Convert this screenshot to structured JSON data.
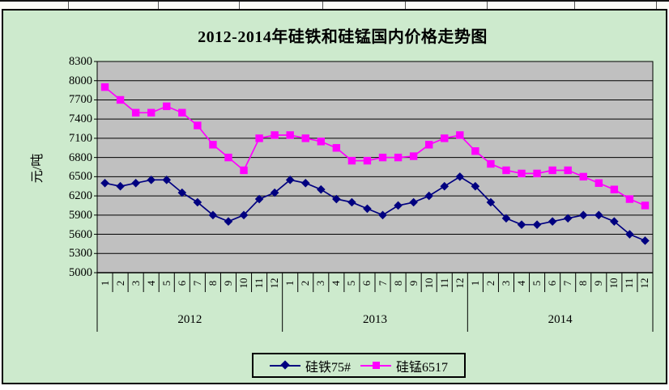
{
  "chart_data": {
    "type": "line",
    "title": "2012-2014年硅铁和硅锰国内价格走势图",
    "ylabel": "元/吨",
    "xlabel": "",
    "ylim": [
      5000,
      8300
    ],
    "y_ticks": [
      8300,
      8000,
      7700,
      7400,
      7100,
      6800,
      6500,
      6200,
      5900,
      5600,
      5300,
      5000
    ],
    "month_ticks": [
      "1",
      "2",
      "3",
      "4",
      "5",
      "6",
      "7",
      "8",
      "9",
      "10",
      "11",
      "12"
    ],
    "years": [
      "2012",
      "2013",
      "2014"
    ],
    "grid": true,
    "legend_position": "bottom",
    "chart_bg": "#cdeacd",
    "plot_bg": "#c0c0c0",
    "series": [
      {
        "name": "硅铁75#",
        "color": "#000080",
        "marker": "diamond",
        "values": [
          6400,
          6350,
          6400,
          6450,
          6450,
          6250,
          6100,
          5900,
          5800,
          5900,
          6150,
          6250,
          6450,
          6400,
          6300,
          6150,
          6100,
          6000,
          5900,
          6050,
          6100,
          6200,
          6350,
          6500,
          6350,
          6100,
          5850,
          5750,
          5750,
          5800,
          5850,
          5900,
          5900,
          5800,
          5600,
          5500
        ]
      },
      {
        "name": "硅锰6517",
        "color": "#ff00ff",
        "marker": "square",
        "values": [
          7900,
          7700,
          7500,
          7500,
          7600,
          7500,
          7300,
          7000,
          6800,
          6600,
          7100,
          7150,
          7150,
          7100,
          7050,
          6950,
          6750,
          6750,
          6800,
          6800,
          6820,
          7000,
          7100,
          7150,
          6900,
          6700,
          6600,
          6550,
          6550,
          6600,
          6600,
          6500,
          6400,
          6300,
          6150,
          6050
        ]
      }
    ]
  }
}
